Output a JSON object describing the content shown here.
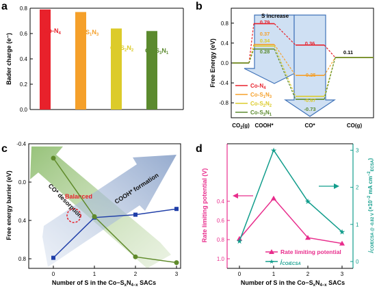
{
  "colors": {
    "red": "#e8212b",
    "orange": "#f5a02a",
    "yellow": "#dccb2a",
    "green": "#5b8a2e",
    "blue": "#1f3ea8",
    "olive": "#5f8a2a",
    "pink": "#e82d8c",
    "teal": "#129d8c",
    "arrow_fill": "#cfe0f3",
    "arrow_stroke": "#3f72b8"
  },
  "panels": {
    "a": {
      "letter": "a"
    },
    "b": {
      "letter": "b"
    },
    "c": {
      "letter": "c"
    },
    "d": {
      "letter": "d"
    }
  },
  "chart_data": [
    {
      "panel": "a",
      "type": "bar",
      "categories": [
        "Co-N4",
        "Co-S1N3",
        "Co-S2N2",
        "Co-S3N1"
      ],
      "values": [
        0.79,
        0.77,
        0.64,
        0.62
      ],
      "ylabel": "Bader charge (e⁻)",
      "xlabel": "",
      "ylim": [
        0.0,
        0.8
      ],
      "yticks": [
        "0.0",
        "0.2",
        "0.4",
        "0.6",
        "0.8"
      ],
      "grid": false
    },
    {
      "panel": "b",
      "type": "line",
      "title": "S increase",
      "xlabel": "",
      "ylabel": "Free Energy (eV)",
      "ylim": [
        -1.1,
        1.1
      ],
      "yticks": [
        "-0.8",
        "-0.4",
        "0.0",
        "0.4",
        "0.8"
      ],
      "categories": [
        "CO2(g)",
        "COOH*",
        "CO*",
        "CO(g)"
      ],
      "series": [
        {
          "name": "Co-N4",
          "values": [
            0.0,
            0.79,
            0.36,
            0.11
          ]
        },
        {
          "name": "Co-S1N3",
          "values": [
            0.0,
            0.37,
            -0.25,
            0.11
          ]
        },
        {
          "name": "Co-S2N2",
          "values": [
            0.0,
            0.34,
            -0.67,
            0.11
          ]
        },
        {
          "name": "Co-S3N1",
          "values": [
            0.0,
            0.28,
            -0.73,
            0.11
          ]
        }
      ],
      "labels": {
        "cooh": [
          "0.79",
          "0.37",
          "0.34",
          "0.28"
        ],
        "co": [
          "0.36",
          "-0.25",
          "-0.67",
          "-0.73"
        ],
        "cog": "0.11"
      },
      "legend_position": "bottom-left"
    },
    {
      "panel": "c",
      "type": "line",
      "xlabel": "Number of S in the Co−SxN4−x SACs",
      "ylabel": "Free energy barrier (eV)",
      "ylim": [
        -0.4,
        0.9
      ],
      "yaxis_inverted": true,
      "yticks": [
        "-0.4",
        "0.0",
        "0.4",
        "0.8"
      ],
      "xticks": [
        "0",
        "1",
        "2",
        "3"
      ],
      "series": [
        {
          "x": [
            0,
            1,
            2,
            3
          ],
          "values": [
            0.79,
            0.37,
            0.34,
            0.28
          ]
        },
        {
          "x": [
            0,
            1,
            2,
            3
          ],
          "values": [
            -0.25,
            0.36,
            0.78,
            0.84
          ]
        }
      ],
      "annotations": [
        "CO* desorption",
        "COOH* formation",
        "Balanced"
      ]
    },
    {
      "panel": "d",
      "type": "line",
      "xlabel": "Number of S in the Co−SxN4−x SACs",
      "ylabel": "Rate limiting potential (V)",
      "ylabel_right": "jCO/ECSA @ -0.82 V (×10⁻² mA cm⁻²ECSA)",
      "ylim": [
        -0.2,
        1.1
      ],
      "yaxis_inverted": true,
      "yticks": [
        "0.4",
        "0.6",
        "0.8",
        "1.0"
      ],
      "ylim_right": [
        0,
        3.1
      ],
      "yticks_right": [
        "0",
        "1",
        "2",
        "3"
      ],
      "xticks": [
        "0",
        "1",
        "2",
        "3"
      ],
      "series": [
        {
          "name": "Rate limiting potential",
          "x": [
            0,
            1,
            2,
            3
          ],
          "values": [
            0.79,
            0.37,
            0.78,
            0.84
          ]
        },
        {
          "name": "jCO/ECSA",
          "axis": "right",
          "x": [
            0,
            1,
            2,
            3
          ],
          "values": [
            0.55,
            3.0,
            1.62,
            0.8
          ]
        }
      ],
      "legend_position": "bottom-right"
    }
  ]
}
